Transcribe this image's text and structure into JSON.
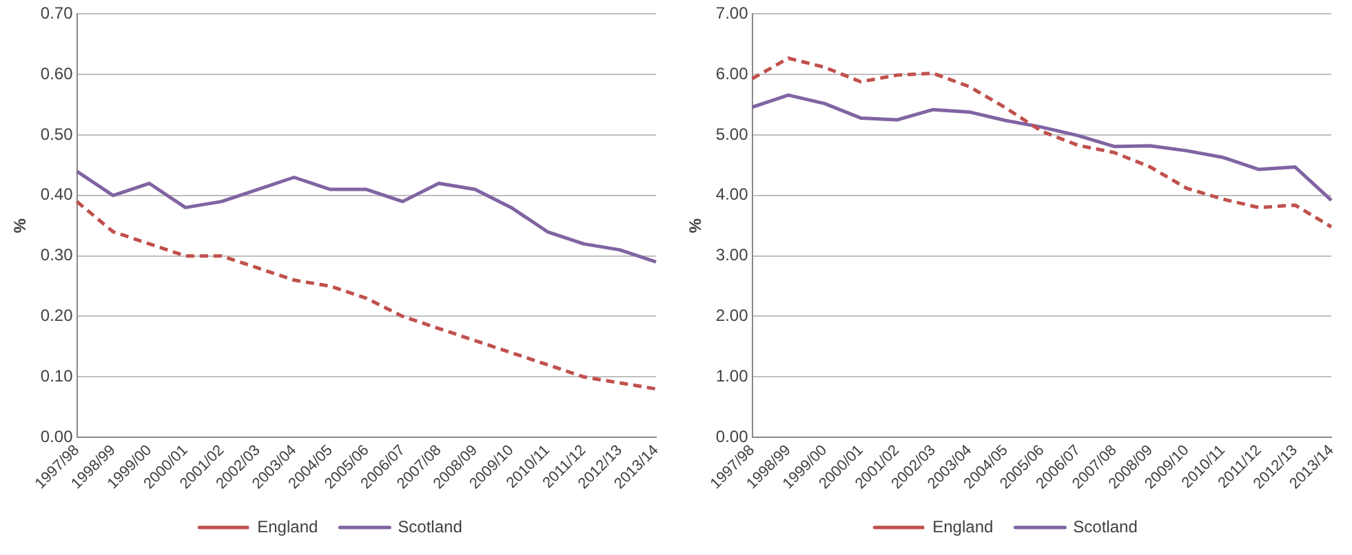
{
  "chart_data": [
    {
      "type": "line",
      "ylabel": "%",
      "categories": [
        "1997/98",
        "1998/99",
        "1999/00",
        "2000/01",
        "2001/02",
        "2002/03",
        "2003/04",
        "2004/05",
        "2005/06",
        "2006/07",
        "2007/08",
        "2008/09",
        "2009/10",
        "2010/11",
        "2011/12",
        "2012/13",
        "2013/14"
      ],
      "series": [
        {
          "name": "England",
          "color": "#c0504d",
          "line_style": "dashed",
          "values": [
            0.39,
            0.34,
            0.32,
            0.3,
            0.3,
            0.28,
            0.26,
            0.25,
            0.23,
            0.2,
            0.18,
            0.16,
            0.14,
            0.12,
            0.1,
            0.09,
            0.08
          ]
        },
        {
          "name": "Scotland",
          "color": "#8064a2",
          "line_style": "solid",
          "values": [
            0.44,
            0.4,
            0.42,
            0.38,
            0.39,
            0.41,
            0.43,
            0.41,
            0.41,
            0.39,
            0.42,
            0.41,
            0.38,
            0.34,
            0.32,
            0.31,
            0.29
          ]
        }
      ],
      "ylim": [
        0,
        0.7
      ],
      "yticks": [
        {
          "value": 0,
          "label": "0.00"
        },
        {
          "value": 0.1,
          "label": "0.10"
        },
        {
          "value": 0.2,
          "label": "0.20"
        },
        {
          "value": 0.3,
          "label": "0.30"
        },
        {
          "value": 0.4,
          "label": "0.40"
        },
        {
          "value": 0.5,
          "label": "0.50"
        },
        {
          "value": 0.6,
          "label": "0.60"
        },
        {
          "value": 0.7,
          "label": "0.70"
        }
      ],
      "grid": "y",
      "legend": "bottom",
      "marker": "none"
    },
    {
      "type": "line",
      "ylabel": "%",
      "categories": [
        "1997/98",
        "1998/99",
        "1999/00",
        "2000/01",
        "2001/02",
        "2002/03",
        "2003/04",
        "2004/05",
        "2005/06",
        "2006/07",
        "2007/08",
        "2008/09",
        "2009/10",
        "2010/11",
        "2011/12",
        "2012/13",
        "2013/14"
      ],
      "series": [
        {
          "name": "England",
          "color": "#c0504d",
          "line_style": "dashed",
          "values": [
            5.93,
            6.27,
            6.12,
            5.88,
            5.99,
            6.02,
            5.8,
            5.45,
            5.06,
            4.83,
            4.71,
            4.47,
            4.12,
            3.94,
            3.8,
            3.84,
            3.48
          ]
        },
        {
          "name": "Scotland",
          "color": "#8064a2",
          "line_style": "solid",
          "values": [
            5.46,
            5.66,
            5.52,
            5.28,
            5.25,
            5.42,
            5.38,
            5.24,
            5.13,
            4.99,
            4.81,
            4.82,
            4.74,
            4.63,
            4.43,
            4.47,
            3.92
          ]
        }
      ],
      "ylim": [
        0,
        7
      ],
      "yticks": [
        {
          "value": 0,
          "label": "0.00"
        },
        {
          "value": 1,
          "label": "1.00"
        },
        {
          "value": 2,
          "label": "2.00"
        },
        {
          "value": 3,
          "label": "3.00"
        },
        {
          "value": 4,
          "label": "4.00"
        },
        {
          "value": 5,
          "label": "5.00"
        },
        {
          "value": 6,
          "label": "6.00"
        },
        {
          "value": 7,
          "label": "7.00"
        }
      ],
      "grid": "y",
      "legend": "bottom",
      "marker": "none"
    }
  ]
}
